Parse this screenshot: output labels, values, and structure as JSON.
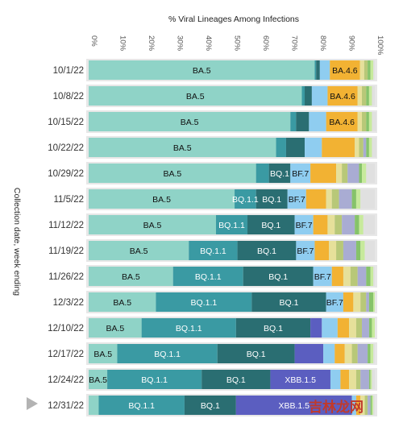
{
  "chart_data": {
    "type": "bar",
    "orientation": "horizontal",
    "stacked": true,
    "title": "% Viral Lineages Among Infections",
    "ylabel": "Collection date, week ending",
    "xlim": [
      0,
      100
    ],
    "xticks": [
      "0%",
      "10%",
      "20%",
      "30%",
      "40%",
      "50%",
      "60%",
      "70%",
      "80%",
      "90%",
      "100%"
    ],
    "legend_position": "none",
    "grid": false,
    "categories": [
      "10/1/22",
      "10/8/22",
      "10/15/22",
      "10/22/22",
      "10/29/22",
      "11/5/22",
      "11/12/22",
      "11/19/22",
      "11/26/22",
      "12/3/22",
      "12/10/22",
      "12/17/22",
      "12/24/22",
      "12/31/22"
    ],
    "current_week_marker": "12/31/22",
    "series": [
      {
        "name": "BA.5",
        "color": "#8fd3c7",
        "values": [
          79,
          74.5,
          70.5,
          65.5,
          58.5,
          51,
          44.5,
          35,
          29.5,
          23.5,
          18.5,
          10,
          6.5,
          3.5
        ]
      },
      {
        "name": "BQ.1.1",
        "color": "#3a9aa3",
        "values": [
          0.5,
          1,
          2,
          3.5,
          4.5,
          7.5,
          11,
          17,
          24.5,
          33.5,
          33,
          35,
          33,
          30
        ]
      },
      {
        "name": "BQ.1",
        "color": "#2a6e72",
        "values": [
          1.3,
          2.5,
          4.5,
          6.5,
          7.5,
          11,
          16.5,
          20.5,
          24.5,
          26,
          26,
          27,
          24,
          18
        ]
      },
      {
        "name": "XBB.1.5",
        "color": "#5b5ec0",
        "values": [
          0,
          0,
          0,
          0,
          0,
          0,
          0,
          0,
          0,
          0,
          4,
          10,
          21,
          40.5
        ]
      },
      {
        "name": "BF.7",
        "color": "#8fcdf0",
        "values": [
          3.5,
          5.5,
          6,
          6,
          7,
          6.5,
          6.5,
          6.5,
          6.5,
          6,
          5.5,
          4,
          3.5,
          1.5
        ]
      },
      {
        "name": "BA.4.6",
        "color": "#f2b233",
        "values": [
          10.5,
          10.5,
          11,
          11.5,
          9,
          7,
          5,
          5,
          4,
          3.5,
          4,
          3.5,
          3,
          1.5
        ]
      },
      {
        "name": "",
        "color": "#e6e09a",
        "values": [
          1.5,
          1.5,
          1.5,
          1.5,
          2,
          2,
          2.5,
          2.5,
          2.5,
          2.5,
          2.5,
          2.5,
          2.5,
          1.5
        ]
      },
      {
        "name": "",
        "color": "#b8c878",
        "values": [
          1.2,
          1.5,
          1.5,
          1.5,
          2,
          2.5,
          2.5,
          2.5,
          2.5,
          2,
          2,
          2,
          1.5,
          1
        ]
      },
      {
        "name": "",
        "color": "#a9acd3",
        "values": [
          0,
          0,
          0,
          1,
          4,
          4.5,
          4.5,
          4.5,
          3,
          1,
          2.5,
          3.5,
          3,
          1
        ]
      },
      {
        "name": "",
        "color": "#86c36a",
        "values": [
          1,
          1,
          1,
          1,
          1,
          1.5,
          1.5,
          1.5,
          1.5,
          1.5,
          1,
          1,
          0.5,
          0.5
        ]
      },
      {
        "name": "",
        "color": "#c7ea9c",
        "values": [
          1,
          1,
          1,
          1,
          1.5,
          1.5,
          1.5,
          1.5,
          1,
          0.5,
          1,
          1,
          0.5,
          0.5
        ]
      },
      {
        "name": "",
        "color": "#e0e0e0",
        "values": [
          0.5,
          1,
          1.5,
          1.5,
          3,
          5,
          4,
          3.5,
          0.5,
          0,
          0,
          0.5,
          1,
          0.5
        ]
      }
    ],
    "segment_labels": [
      {
        "row": 0,
        "series": 0,
        "text": "BA.5"
      },
      {
        "row": 0,
        "series": 5,
        "text": "BA.4.6"
      },
      {
        "row": 1,
        "series": 0,
        "text": "BA.5"
      },
      {
        "row": 1,
        "series": 5,
        "text": "BA.4.6"
      },
      {
        "row": 2,
        "series": 0,
        "text": "BA.5"
      },
      {
        "row": 2,
        "series": 5,
        "text": "BA.4.6"
      },
      {
        "row": 3,
        "series": 0,
        "text": "BA.5"
      },
      {
        "row": 4,
        "series": 0,
        "text": "BA.5"
      },
      {
        "row": 4,
        "series": 2,
        "text": "BQ.1"
      },
      {
        "row": 4,
        "series": 4,
        "text": "BF.7"
      },
      {
        "row": 5,
        "series": 0,
        "text": "BA.5"
      },
      {
        "row": 5,
        "series": 1,
        "text": "BQ.1.1"
      },
      {
        "row": 5,
        "series": 2,
        "text": "BQ.1"
      },
      {
        "row": 5,
        "series": 4,
        "text": "BF.7"
      },
      {
        "row": 6,
        "series": 0,
        "text": "BA.5"
      },
      {
        "row": 6,
        "series": 1,
        "text": "BQ.1.1"
      },
      {
        "row": 6,
        "series": 2,
        "text": "BQ.1"
      },
      {
        "row": 6,
        "series": 4,
        "text": "BF.7"
      },
      {
        "row": 7,
        "series": 0,
        "text": "BA.5"
      },
      {
        "row": 7,
        "series": 1,
        "text": "BQ.1.1"
      },
      {
        "row": 7,
        "series": 2,
        "text": "BQ.1"
      },
      {
        "row": 7,
        "series": 4,
        "text": "BF.7"
      },
      {
        "row": 8,
        "series": 0,
        "text": "BA.5"
      },
      {
        "row": 8,
        "series": 1,
        "text": "BQ.1.1"
      },
      {
        "row": 8,
        "series": 2,
        "text": "BQ.1"
      },
      {
        "row": 8,
        "series": 4,
        "text": "BF.7"
      },
      {
        "row": 9,
        "series": 0,
        "text": "BA.5"
      },
      {
        "row": 9,
        "series": 1,
        "text": "BQ.1.1"
      },
      {
        "row": 9,
        "series": 2,
        "text": "BQ.1"
      },
      {
        "row": 9,
        "series": 4,
        "text": "BF.7"
      },
      {
        "row": 10,
        "series": 0,
        "text": "BA.5"
      },
      {
        "row": 10,
        "series": 1,
        "text": "BQ.1.1"
      },
      {
        "row": 10,
        "series": 2,
        "text": "BQ.1"
      },
      {
        "row": 11,
        "series": 0,
        "text": "BA.5"
      },
      {
        "row": 11,
        "series": 1,
        "text": "BQ.1.1"
      },
      {
        "row": 11,
        "series": 2,
        "text": "BQ.1"
      },
      {
        "row": 12,
        "series": 0,
        "text": "BA.5"
      },
      {
        "row": 12,
        "series": 1,
        "text": "BQ.1.1"
      },
      {
        "row": 12,
        "series": 2,
        "text": "BQ.1"
      },
      {
        "row": 12,
        "series": 3,
        "text": "XBB.1.5"
      },
      {
        "row": 13,
        "series": 1,
        "text": "BQ.1.1"
      },
      {
        "row": 13,
        "series": 2,
        "text": "BQ.1"
      },
      {
        "row": 13,
        "series": 3,
        "text": "XBB.1.5"
      }
    ]
  },
  "watermark": {
    "text": "吉林龙网"
  }
}
